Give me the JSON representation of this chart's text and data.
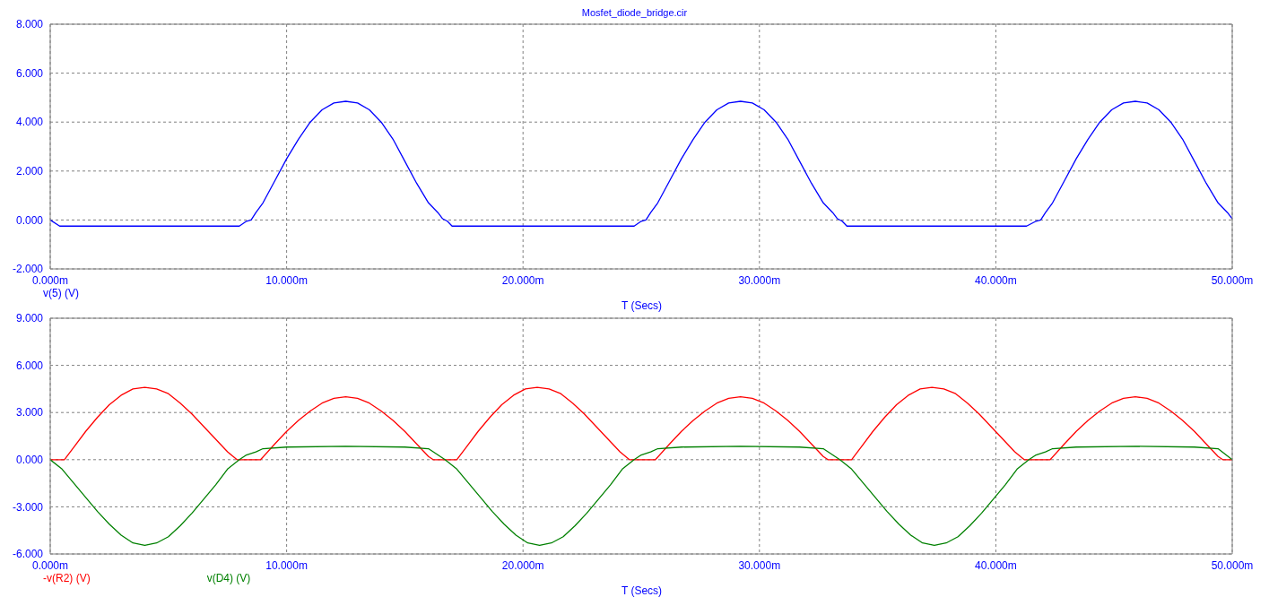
{
  "chart_data": [
    {
      "type": "line",
      "title": "Mosfet_diode_bridge.cir",
      "xlabel": "T (Secs)",
      "grid": true,
      "legend": "bottom left",
      "marker": "none",
      "xlim": [
        0,
        50
      ],
      "xticks": [
        {
          "value": 0,
          "label": "0.000m"
        },
        {
          "value": 10,
          "label": "10.000m"
        },
        {
          "value": 20,
          "label": "20.000m"
        },
        {
          "value": 30,
          "label": "30.000m"
        },
        {
          "value": 40,
          "label": "40.000m"
        },
        {
          "value": 50,
          "label": "50.000m"
        }
      ],
      "ylim": [
        -2,
        8
      ],
      "yticks": [
        {
          "value": -2,
          "label": "-2.000"
        },
        {
          "value": 0,
          "label": "0.000"
        },
        {
          "value": 2,
          "label": "2.000"
        },
        {
          "value": 4,
          "label": "4.000"
        },
        {
          "value": 6,
          "label": "6.000"
        },
        {
          "value": 8,
          "label": "8.000"
        }
      ],
      "series": [
        {
          "name": "v(5) (V)",
          "color": "#0000ff",
          "x": [
            0,
            0.4,
            8.0,
            8.3,
            8.5,
            8.7,
            9.0,
            9.5,
            10.0,
            10.5,
            11.0,
            11.5,
            12.0,
            12.5,
            13.0,
            13.5,
            14.0,
            14.5,
            15.0,
            15.5,
            16.0,
            16.4,
            16.6,
            16.8,
            17.0,
            24.7,
            25.0,
            25.2,
            25.4,
            25.7,
            26.2,
            26.7,
            27.2,
            27.7,
            28.2,
            28.7,
            29.2,
            29.7,
            30.2,
            30.7,
            31.2,
            31.7,
            32.2,
            32.7,
            33.1,
            33.3,
            33.5,
            33.7,
            41.3,
            41.7,
            41.9,
            42.1,
            42.4,
            42.9,
            43.4,
            43.9,
            44.4,
            44.9,
            45.4,
            45.9,
            46.4,
            46.9,
            47.4,
            47.9,
            48.4,
            48.9,
            49.4,
            49.8,
            50.0
          ],
          "values": [
            0,
            -0.25,
            -0.25,
            -0.05,
            0,
            0.3,
            0.7,
            1.6,
            2.5,
            3.3,
            4.0,
            4.5,
            4.78,
            4.85,
            4.78,
            4.5,
            4.0,
            3.3,
            2.4,
            1.5,
            0.7,
            0.3,
            0.05,
            -0.05,
            -0.25,
            -0.25,
            -0.05,
            0,
            0.3,
            0.7,
            1.6,
            2.5,
            3.3,
            4.0,
            4.5,
            4.78,
            4.85,
            4.78,
            4.5,
            4.0,
            3.3,
            2.4,
            1.5,
            0.7,
            0.3,
            0.05,
            -0.05,
            -0.25,
            -0.25,
            -0.05,
            0,
            0.3,
            0.7,
            1.6,
            2.5,
            3.3,
            4.0,
            4.5,
            4.78,
            4.85,
            4.78,
            4.5,
            4.0,
            3.3,
            2.4,
            1.5,
            0.7,
            0.3,
            0.05
          ]
        }
      ]
    },
    {
      "type": "line",
      "xlabel": "T (Secs)",
      "grid": true,
      "legend": "bottom left",
      "marker": "none",
      "xlim": [
        0,
        50
      ],
      "xticks": [
        {
          "value": 0,
          "label": "0.000m"
        },
        {
          "value": 10,
          "label": "10.000m"
        },
        {
          "value": 20,
          "label": "20.000m"
        },
        {
          "value": 30,
          "label": "30.000m"
        },
        {
          "value": 40,
          "label": "40.000m"
        },
        {
          "value": 50,
          "label": "50.000m"
        }
      ],
      "ylim": [
        -6,
        9
      ],
      "yticks": [
        {
          "value": -6,
          "label": "-6.000"
        },
        {
          "value": -3,
          "label": "-3.000"
        },
        {
          "value": 0,
          "label": "0.000"
        },
        {
          "value": 3,
          "label": "3.000"
        },
        {
          "value": 6,
          "label": "6.000"
        },
        {
          "value": 9,
          "label": "9.000"
        }
      ],
      "series": [
        {
          "name": "-v(R2) (V)",
          "color": "#ff0000",
          "x": [
            0,
            0.6,
            1.0,
            1.5,
            2.0,
            2.5,
            3.0,
            3.5,
            4.0,
            4.5,
            5.0,
            5.5,
            6.0,
            6.5,
            7.0,
            7.5,
            7.9,
            8.9,
            9.5,
            10.0,
            10.5,
            11.0,
            11.5,
            12.0,
            12.5,
            13.0,
            13.5,
            14.0,
            14.5,
            15.0,
            15.5,
            16.0,
            16.2,
            17.2,
            17.6,
            18.1,
            18.6,
            19.1,
            19.6,
            20.1,
            20.6,
            21.1,
            21.6,
            22.1,
            22.6,
            23.1,
            23.6,
            24.1,
            24.5,
            25.6,
            26.2,
            26.7,
            27.2,
            27.7,
            28.2,
            28.7,
            29.2,
            29.7,
            30.2,
            30.7,
            31.2,
            31.7,
            32.2,
            32.7,
            32.9,
            33.9,
            34.3,
            34.8,
            35.3,
            35.8,
            36.3,
            36.8,
            37.3,
            37.8,
            38.3,
            38.8,
            39.3,
            39.8,
            40.3,
            40.8,
            41.2,
            42.3,
            42.9,
            43.4,
            43.9,
            44.4,
            44.9,
            45.4,
            45.9,
            46.4,
            46.9,
            47.4,
            47.9,
            48.4,
            48.9,
            49.4,
            49.6,
            50.0
          ],
          "values": [
            0,
            0,
            0.8,
            1.8,
            2.7,
            3.5,
            4.1,
            4.5,
            4.6,
            4.5,
            4.2,
            3.6,
            2.9,
            2.1,
            1.3,
            0.5,
            0,
            0,
            1.0,
            1.8,
            2.5,
            3.1,
            3.6,
            3.9,
            4.0,
            3.9,
            3.6,
            3.1,
            2.5,
            1.8,
            1.0,
            0.2,
            0,
            0,
            0.8,
            1.8,
            2.7,
            3.5,
            4.1,
            4.5,
            4.6,
            4.5,
            4.2,
            3.6,
            2.9,
            2.1,
            1.3,
            0.5,
            0,
            0,
            1.0,
            1.8,
            2.5,
            3.1,
            3.6,
            3.9,
            4.0,
            3.9,
            3.6,
            3.1,
            2.5,
            1.8,
            1.0,
            0.2,
            0,
            0,
            0.8,
            1.8,
            2.7,
            3.5,
            4.1,
            4.5,
            4.6,
            4.5,
            4.2,
            3.6,
            2.9,
            2.1,
            1.3,
            0.5,
            0,
            0,
            1.0,
            1.8,
            2.5,
            3.1,
            3.6,
            3.9,
            4.0,
            3.9,
            3.6,
            3.1,
            2.5,
            1.8,
            1.0,
            0.2,
            0,
            0
          ]
        },
        {
          "name": "v(D4) (V)",
          "color": "#008000",
          "x": [
            0,
            0.5,
            1.0,
            1.5,
            2.0,
            2.5,
            3.0,
            3.5,
            4.0,
            4.5,
            5.0,
            5.5,
            6.0,
            6.5,
            7.0,
            7.5,
            8.0,
            8.3,
            8.7,
            9.0,
            10.0,
            12.5,
            15.0,
            16.0,
            16.4,
            16.7,
            17.2,
            17.7,
            18.2,
            18.7,
            19.2,
            19.7,
            20.2,
            20.7,
            21.2,
            21.7,
            22.2,
            22.7,
            23.2,
            23.7,
            24.2,
            24.7,
            25.0,
            25.4,
            25.7,
            26.7,
            29.2,
            31.7,
            32.7,
            33.1,
            33.4,
            33.9,
            34.4,
            34.9,
            35.4,
            35.9,
            36.4,
            36.9,
            37.4,
            37.9,
            38.4,
            38.9,
            39.4,
            39.9,
            40.4,
            40.9,
            41.4,
            41.7,
            42.1,
            42.4,
            43.4,
            45.9,
            48.4,
            49.4,
            50.0
          ],
          "values": [
            0,
            -0.6,
            -1.5,
            -2.4,
            -3.3,
            -4.1,
            -4.8,
            -5.3,
            -5.45,
            -5.3,
            -4.9,
            -4.2,
            -3.4,
            -2.5,
            -1.6,
            -0.6,
            0,
            0.3,
            0.5,
            0.7,
            0.8,
            0.85,
            0.8,
            0.7,
            0.3,
            0,
            -0.6,
            -1.5,
            -2.4,
            -3.3,
            -4.1,
            -4.8,
            -5.3,
            -5.45,
            -5.3,
            -4.9,
            -4.2,
            -3.4,
            -2.5,
            -1.6,
            -0.6,
            0,
            0.3,
            0.5,
            0.7,
            0.8,
            0.85,
            0.8,
            0.7,
            0.3,
            0,
            -0.6,
            -1.5,
            -2.4,
            -3.3,
            -4.1,
            -4.8,
            -5.3,
            -5.45,
            -5.3,
            -4.9,
            -4.2,
            -3.4,
            -2.5,
            -1.6,
            -0.6,
            0,
            0.3,
            0.5,
            0.7,
            0.8,
            0.85,
            0.8,
            0.7,
            0
          ]
        }
      ]
    }
  ]
}
